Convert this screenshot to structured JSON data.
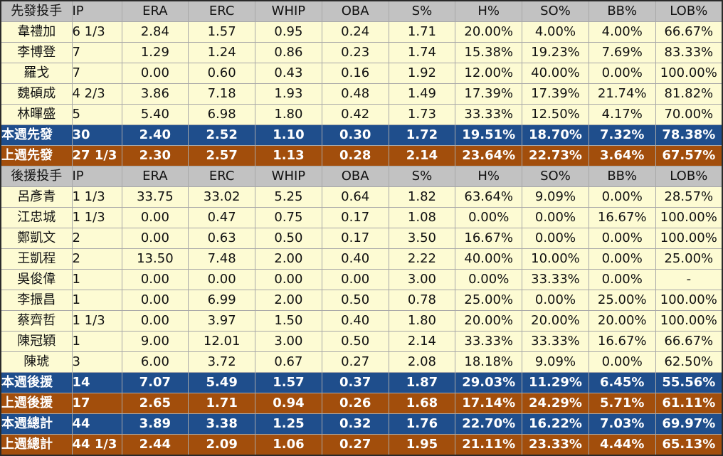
{
  "colors": {
    "header": "#c2c2c2",
    "data": "#fdfbd3",
    "this_week": "#1f4e8c",
    "last_week": "#a24e0c"
  },
  "starter_header": [
    "先發投手",
    "IP",
    "ERA",
    "ERC",
    "WHIP",
    "OBA",
    "S%",
    "H%",
    "SO%",
    "BB%",
    "LOB%"
  ],
  "starters": [
    [
      "韋禮加",
      "6 1/3",
      "2.84",
      "1.57",
      "0.95",
      "0.24",
      "1.71",
      "20.00%",
      "4.00%",
      "4.00%",
      "66.67%"
    ],
    [
      "李博登",
      "7",
      "1.29",
      "1.24",
      "0.86",
      "0.23",
      "1.74",
      "15.38%",
      "19.23%",
      "7.69%",
      "83.33%"
    ],
    [
      "羅戈",
      "7",
      "0.00",
      "0.60",
      "0.43",
      "0.16",
      "1.92",
      "12.00%",
      "40.00%",
      "0.00%",
      "100.00%"
    ],
    [
      "魏碩成",
      "4 2/3",
      "3.86",
      "7.18",
      "1.93",
      "0.48",
      "1.49",
      "17.39%",
      "17.39%",
      "21.74%",
      "81.82%"
    ],
    [
      "林暉盛",
      "5",
      "5.40",
      "6.98",
      "1.80",
      "0.42",
      "1.73",
      "33.33%",
      "12.50%",
      "4.17%",
      "70.00%"
    ]
  ],
  "starter_this_week": [
    "本週先發",
    "30",
    "2.40",
    "2.52",
    "1.10",
    "0.30",
    "1.72",
    "19.51%",
    "18.70%",
    "7.32%",
    "78.38%"
  ],
  "starter_last_week": [
    "上週先發",
    "27 1/3",
    "2.30",
    "2.57",
    "1.13",
    "0.28",
    "2.14",
    "23.64%",
    "22.73%",
    "3.64%",
    "67.57%"
  ],
  "reliever_header": [
    "後援投手",
    "IP",
    "ERA",
    "ERC",
    "WHIP",
    "OBA",
    "S%",
    "H%",
    "SO%",
    "BB%",
    "LOB%"
  ],
  "relievers": [
    [
      "呂彥青",
      "1 1/3",
      "33.75",
      "33.02",
      "5.25",
      "0.64",
      "1.82",
      "63.64%",
      "9.09%",
      "0.00%",
      "28.57%"
    ],
    [
      "江忠城",
      "1 1/3",
      "0.00",
      "0.47",
      "0.75",
      "0.17",
      "1.08",
      "0.00%",
      "0.00%",
      "16.67%",
      "100.00%"
    ],
    [
      "鄭凱文",
      "2",
      "0.00",
      "0.63",
      "0.50",
      "0.17",
      "3.50",
      "16.67%",
      "0.00%",
      "0.00%",
      "100.00%"
    ],
    [
      "王凱程",
      "2",
      "13.50",
      "7.48",
      "2.00",
      "0.40",
      "2.22",
      "40.00%",
      "10.00%",
      "0.00%",
      "25.00%"
    ],
    [
      "吳俊偉",
      "1",
      "0.00",
      "0.00",
      "0.00",
      "0.00",
      "3.00",
      "0.00%",
      "33.33%",
      "0.00%",
      "-"
    ],
    [
      "李振昌",
      "1",
      "0.00",
      "6.99",
      "2.00",
      "0.50",
      "0.78",
      "25.00%",
      "0.00%",
      "25.00%",
      "100.00%"
    ],
    [
      "蔡齊哲",
      "1 1/3",
      "0.00",
      "3.97",
      "1.50",
      "0.40",
      "1.80",
      "20.00%",
      "20.00%",
      "20.00%",
      "100.00%"
    ],
    [
      "陳冠穎",
      "1",
      "9.00",
      "12.01",
      "3.00",
      "0.50",
      "2.14",
      "33.33%",
      "33.33%",
      "16.67%",
      "66.67%"
    ],
    [
      "陳琥",
      "3",
      "6.00",
      "3.72",
      "0.67",
      "0.27",
      "2.08",
      "18.18%",
      "9.09%",
      "0.00%",
      "62.50%"
    ]
  ],
  "reliever_this_week": [
    "本週後援",
    "14",
    "7.07",
    "5.49",
    "1.57",
    "0.37",
    "1.87",
    "29.03%",
    "11.29%",
    "6.45%",
    "55.56%"
  ],
  "reliever_last_week": [
    "上週後援",
    "17",
    "2.65",
    "1.71",
    "0.94",
    "0.26",
    "1.68",
    "17.14%",
    "24.29%",
    "5.71%",
    "61.11%"
  ],
  "total_this_week": [
    "本週總計",
    "44",
    "3.89",
    "3.38",
    "1.25",
    "0.32",
    "1.76",
    "22.70%",
    "16.22%",
    "7.03%",
    "69.97%"
  ],
  "total_last_week": [
    "上週總計",
    "44 1/3",
    "2.44",
    "2.09",
    "1.06",
    "0.27",
    "1.95",
    "21.11%",
    "23.33%",
    "4.44%",
    "65.13%"
  ]
}
